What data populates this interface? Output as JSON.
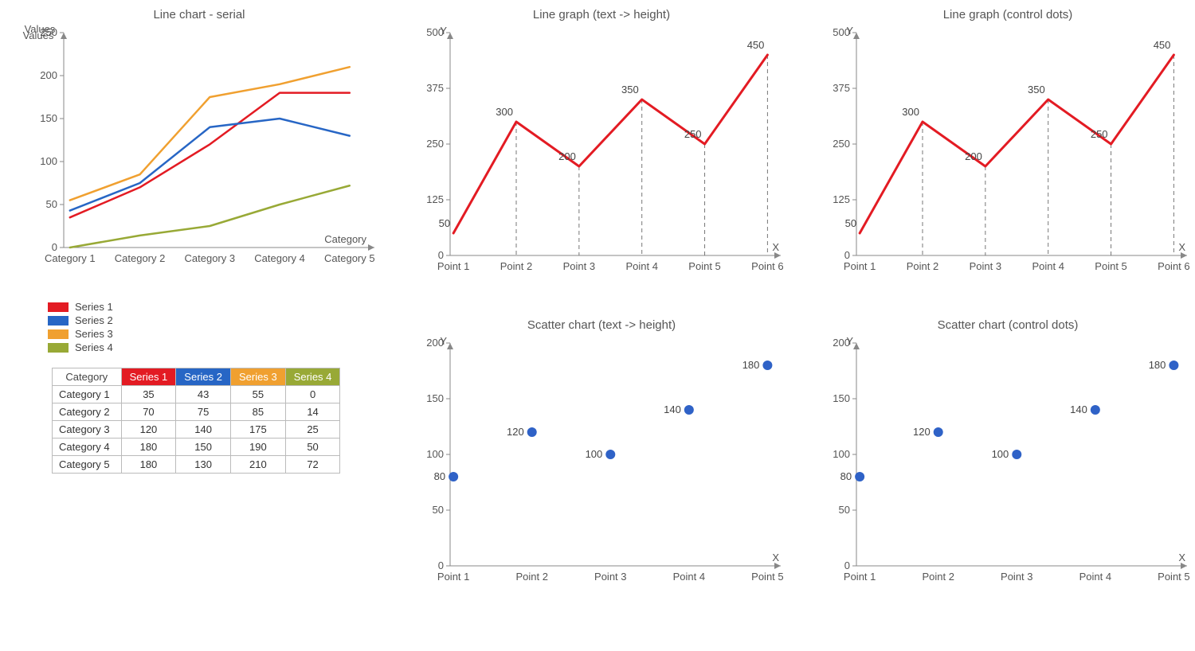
{
  "background_color": "#ffffff",
  "font_family": "Arial",
  "axis_label_fontsize": 13,
  "title_fontsize": 15,
  "line_chart": {
    "type": "line",
    "title": "Line chart - serial",
    "x_axis_label": "Category",
    "y_axis_label": "Values",
    "categories": [
      "Category 1",
      "Category 2",
      "Category 3",
      "Category 4",
      "Category 5"
    ],
    "y_lim": [
      0,
      250
    ],
    "y_tick_step": 50,
    "y_ticks": [
      0,
      50,
      100,
      150,
      200,
      250
    ],
    "line_width": 2.5,
    "axis_color": "#888888",
    "tick_color": "#555555",
    "series": [
      {
        "name": "Series 1",
        "color": "#e31b23",
        "values": [
          35,
          70,
          120,
          180,
          180
        ]
      },
      {
        "name": "Series 2",
        "color": "#2766c5",
        "values": [
          43,
          75,
          140,
          150,
          130
        ]
      },
      {
        "name": "Series 3",
        "color": "#f0a030",
        "values": [
          55,
          85,
          175,
          190,
          210
        ]
      },
      {
        "name": "Series 4",
        "color": "#98a936",
        "values": [
          0,
          14,
          25,
          50,
          72
        ]
      }
    ]
  },
  "legend": {
    "swatch_width": 26,
    "swatch_height": 12,
    "items": [
      {
        "label": "Series 1",
        "color": "#e31b23"
      },
      {
        "label": "Series 2",
        "color": "#2766c5"
      },
      {
        "label": "Series 3",
        "color": "#f0a030"
      },
      {
        "label": "Series 4",
        "color": "#98a936"
      }
    ]
  },
  "data_table": {
    "header_category_label": "Category",
    "columns": [
      {
        "label": "Series 1",
        "bg": "#e31b23"
      },
      {
        "label": "Series 2",
        "bg": "#2766c5"
      },
      {
        "label": "Series 3",
        "bg": "#f0a030"
      },
      {
        "label": "Series 4",
        "bg": "#98a936"
      }
    ],
    "rows": [
      {
        "category": "Category 1",
        "values": [
          35,
          43,
          55,
          0
        ]
      },
      {
        "category": "Category 2",
        "values": [
          70,
          75,
          85,
          14
        ]
      },
      {
        "category": "Category 3",
        "values": [
          120,
          140,
          175,
          25
        ]
      },
      {
        "category": "Category 4",
        "values": [
          180,
          150,
          190,
          50
        ]
      },
      {
        "category": "Category 5",
        "values": [
          180,
          130,
          210,
          72
        ]
      }
    ],
    "border_color": "#bbbbbb"
  },
  "line_graph": {
    "type": "line",
    "title_text": "Line graph (text -> height)",
    "title_dots": "Line graph (control dots)",
    "x_axis_label": "X",
    "y_axis_label": "Y",
    "points": [
      "Point 1",
      "Point 2",
      "Point 3",
      "Point 4",
      "Point 5",
      "Point 6"
    ],
    "values": [
      50,
      300,
      200,
      350,
      250,
      450
    ],
    "y_lim": [
      0,
      500
    ],
    "y_tick_step": 125,
    "y_ticks": [
      0,
      125,
      250,
      375,
      500
    ],
    "line_color": "#e31b23",
    "line_width": 3,
    "drop_line_color": "#777777",
    "drop_line_dash": "5,4",
    "axis_color": "#888888",
    "show_value_labels": true
  },
  "scatter_chart": {
    "type": "scatter",
    "title_text": "Scatter chart (text -> height)",
    "title_dots": "Scatter chart (control dots)",
    "x_axis_label": "X",
    "y_axis_label": "Y",
    "points": [
      "Point 1",
      "Point 2",
      "Point 3",
      "Point 4",
      "Point 5"
    ],
    "values": [
      80,
      120,
      100,
      140,
      180
    ],
    "y_lim": [
      0,
      200
    ],
    "y_tick_step": 50,
    "y_ticks": [
      0,
      50,
      100,
      150,
      200
    ],
    "marker_color": "#2f62c7",
    "marker_radius": 6,
    "axis_color": "#888888",
    "show_value_labels": true
  }
}
